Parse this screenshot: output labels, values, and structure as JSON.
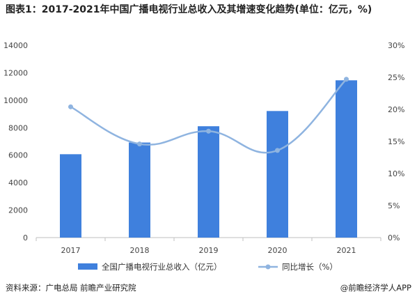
{
  "chart_data": {
    "type": "bar",
    "title": "图表1：2017-2021年中国广播电视行业总收入及其增速变化趋势(单位：亿元，%)",
    "categories": [
      "2017",
      "2018",
      "2019",
      "2020",
      "2021"
    ],
    "series": [
      {
        "name": "全国广播电视行业总收入（亿元）",
        "type": "bar",
        "axis": "left",
        "values": [
          6070,
          6920,
          8107,
          9215,
          11451
        ]
      },
      {
        "name": "同比增长（%）",
        "type": "line",
        "axis": "right",
        "smooth": true,
        "values": [
          20.4,
          14.6,
          16.6,
          13.6,
          24.7
        ]
      }
    ],
    "y_left": {
      "min": 0,
      "max": 14000,
      "ticks": [
        0,
        2000,
        4000,
        6000,
        8000,
        10000,
        12000,
        14000
      ]
    },
    "y_right": {
      "min": 0,
      "max": 30,
      "ticks": [
        "0%",
        "5%",
        "10%",
        "15%",
        "20%",
        "25%",
        "30%"
      ]
    },
    "grid": false,
    "legend_position": "bottom",
    "colors": {
      "bar": "#3f80dd",
      "line": "#8fb4e0",
      "axis": "#bfbfbf"
    }
  },
  "footer": {
    "source": "资料来源：广电总局 前瞻产业研究院",
    "brand": "@前瞻经济学人APP"
  }
}
